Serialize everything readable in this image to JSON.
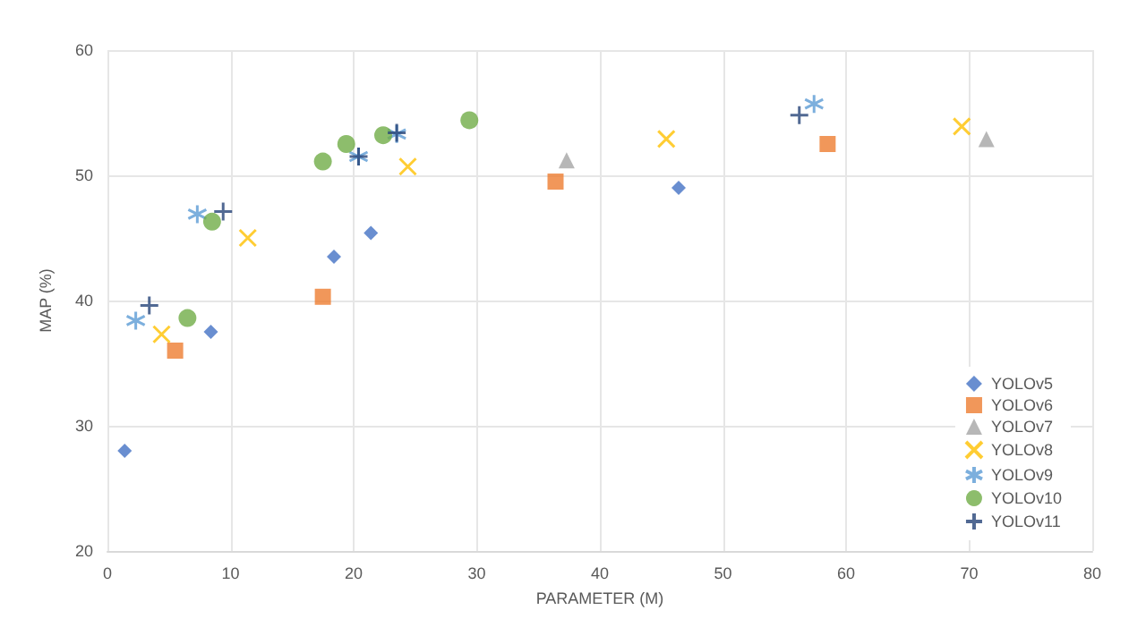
{
  "chart_data": {
    "type": "scatter",
    "xlabel": "PARAMETER (M)",
    "ylabel": "MAP (%)",
    "xlim": [
      0,
      80
    ],
    "xticks": [
      0,
      10,
      20,
      30,
      40,
      50,
      60,
      70,
      80
    ],
    "ylim": [
      20,
      60
    ],
    "yticks": [
      20,
      30,
      40,
      50,
      60
    ],
    "grid": true,
    "legend": "bottom right",
    "series": [
      {
        "name": "YOLOv5",
        "color": "#4472c4",
        "marker": "diamond",
        "x": [
          1.4,
          8.4,
          18.4,
          21.4,
          46.4
        ],
        "values": [
          28.0,
          37.5,
          43.5,
          45.4,
          49.0
        ]
      },
      {
        "name": "YOLOv6",
        "color": "#ed7d31",
        "marker": "square",
        "x": [
          5.5,
          17.5,
          36.4,
          58.5
        ],
        "values": [
          36.0,
          40.3,
          49.5,
          52.5
        ]
      },
      {
        "name": "YOLOv7",
        "color": "#a5a5a5",
        "marker": "triangle",
        "x": [
          37.3,
          71.4
        ],
        "values": [
          51.2,
          52.9
        ]
      },
      {
        "name": "YOLOv8",
        "color": "#ffc000",
        "marker": "cross",
        "x": [
          4.4,
          11.4,
          24.4,
          45.4,
          69.4
        ],
        "values": [
          37.3,
          45.0,
          50.7,
          52.9,
          53.9
        ]
      },
      {
        "name": "YOLOv9",
        "color": "#5b9bd5",
        "marker": "cross",
        "x": [
          2.3,
          7.3,
          20.4,
          23.5,
          57.4
        ],
        "values": [
          38.4,
          46.9,
          51.5,
          53.3,
          55.7
        ]
      },
      {
        "name": "YOLOv10",
        "color": "#70ad47",
        "marker": "circle",
        "x": [
          6.5,
          8.5,
          17.5,
          19.4,
          22.4,
          29.4
        ],
        "values": [
          38.6,
          46.3,
          51.1,
          52.5,
          53.2,
          54.4
        ]
      },
      {
        "name": "YOLOv11",
        "color": "#264478",
        "marker": "plus",
        "x": [
          3.4,
          9.4,
          20.4,
          23.5,
          56.2
        ],
        "values": [
          39.6,
          47.1,
          51.5,
          53.4,
          54.8
        ]
      }
    ]
  }
}
